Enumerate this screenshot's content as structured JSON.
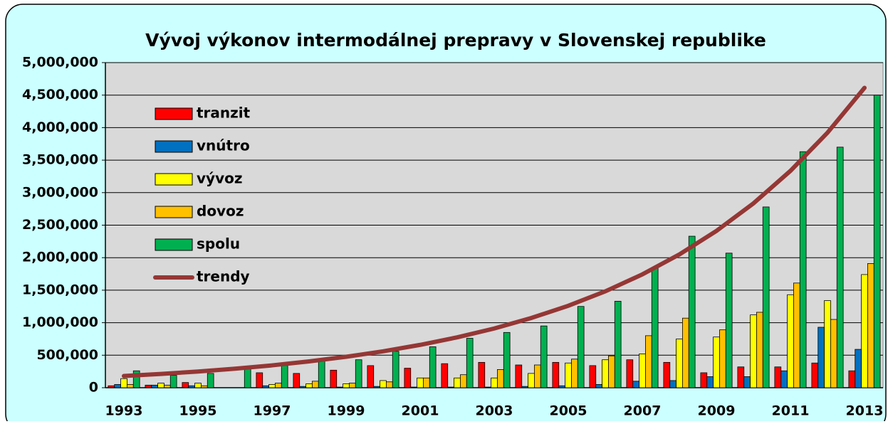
{
  "chart_data": {
    "type": "bar",
    "title": "Vývoj výkonov intermodálnej prepravy v Slovenskej republike",
    "categories": [
      "1993",
      null,
      "1995",
      null,
      "1997",
      null,
      "1999",
      null,
      "2001",
      null,
      "2003",
      null,
      "2005",
      null,
      "2007",
      null,
      "2009",
      null,
      "2011",
      null,
      "2013"
    ],
    "series": [
      {
        "name": "tranzit",
        "color": "#ff0000",
        "values": [
          30000,
          40000,
          80000,
          0,
          230000,
          220000,
          270000,
          340000,
          300000,
          370000,
          390000,
          350000,
          390000,
          340000,
          430000,
          390000,
          230000,
          320000,
          320000,
          380000,
          260000
        ]
      },
      {
        "name": "vnútro",
        "color": "#0070c0",
        "values": [
          50000,
          40000,
          30000,
          0,
          30000,
          20000,
          10000,
          20000,
          10000,
          10000,
          10000,
          20000,
          30000,
          50000,
          100000,
          110000,
          170000,
          170000,
          260000,
          930000,
          590000
        ]
      },
      {
        "name": "vývoz",
        "color": "#ffff00",
        "values": [
          140000,
          70000,
          70000,
          0,
          50000,
          60000,
          60000,
          110000,
          150000,
          150000,
          150000,
          220000,
          380000,
          430000,
          520000,
          750000,
          780000,
          1120000,
          1430000,
          1340000,
          1740000
        ]
      },
      {
        "name": "dovoz",
        "color": "#ffc000",
        "values": [
          50000,
          40000,
          30000,
          0,
          70000,
          100000,
          70000,
          90000,
          150000,
          200000,
          280000,
          350000,
          440000,
          490000,
          800000,
          1070000,
          890000,
          1160000,
          1610000,
          1050000,
          1910000
        ]
      },
      {
        "name": "spolu",
        "color": "#00b050",
        "values": [
          260000,
          190000,
          220000,
          300000,
          340000,
          420000,
          430000,
          560000,
          630000,
          760000,
          850000,
          950000,
          1250000,
          1330000,
          1850000,
          2330000,
          2070000,
          2780000,
          3630000,
          3700000,
          4500000
        ]
      },
      {
        "name": "trendy",
        "color": "#953735",
        "type": "line",
        "values": [
          180000,
          212000,
          249000,
          293000,
          344000,
          405000,
          476000,
          560000,
          659000,
          775000,
          911000,
          1072000,
          1260000,
          1482000,
          1743000,
          2050000,
          2411000,
          2835000,
          3335000,
          3922000,
          4612000
        ]
      }
    ],
    "ylim": [
      0,
      5000000
    ],
    "yticks": [
      0,
      {
        "value": 500000,
        "label": "500,000"
      },
      {
        "value": 1000000,
        "label": "1,000,000"
      },
      {
        "value": 1500000,
        "label": "1,500,000"
      },
      {
        "value": 2000000,
        "label": "2,000,000"
      },
      {
        "value": 2500000,
        "label": "2,500,000"
      },
      {
        "value": 3000000,
        "label": "3,000,000"
      },
      {
        "value": 3500000,
        "label": "3,500,000"
      },
      {
        "value": 4000000,
        "label": "4,000,000"
      },
      {
        "value": 4500000,
        "label": "4,500,000"
      },
      {
        "value": 5000000,
        "label": "5,000,000"
      }
    ],
    "grid": true
  }
}
